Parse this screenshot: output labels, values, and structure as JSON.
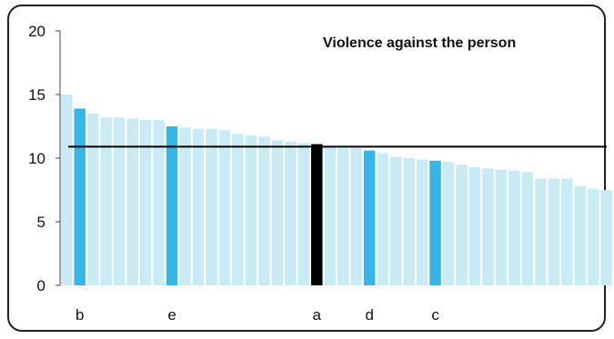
{
  "chart_data": {
    "type": "bar",
    "title": "Violence against the person",
    "xlabel": "",
    "ylabel": "",
    "ylim": [
      0,
      20
    ],
    "yticks": [
      0,
      5,
      10,
      15,
      20
    ],
    "reference_line": 10.9,
    "values": [
      15.0,
      13.9,
      13.5,
      13.2,
      13.2,
      13.1,
      13.0,
      13.0,
      12.5,
      12.4,
      12.3,
      12.3,
      12.2,
      11.9,
      11.8,
      11.7,
      11.4,
      11.3,
      11.2,
      11.1,
      10.9,
      10.8,
      10.8,
      10.6,
      10.4,
      10.1,
      10.0,
      9.9,
      9.8,
      9.7,
      9.5,
      9.3,
      9.2,
      9.1,
      9.0,
      8.9,
      8.4,
      8.4,
      8.4,
      7.8,
      7.6,
      7.5
    ],
    "highlight": {
      "1": "b",
      "8": "e",
      "19": "a",
      "23": "d",
      "28": "c"
    },
    "category_labels": [
      "b",
      "e",
      "a",
      "d",
      "c"
    ],
    "grid": false,
    "colors": {
      "bar": "#c8ebf6",
      "highlight": "#37b6e6",
      "focus": "#000000",
      "reference_line": "#000000",
      "axis": "#444444"
    }
  }
}
